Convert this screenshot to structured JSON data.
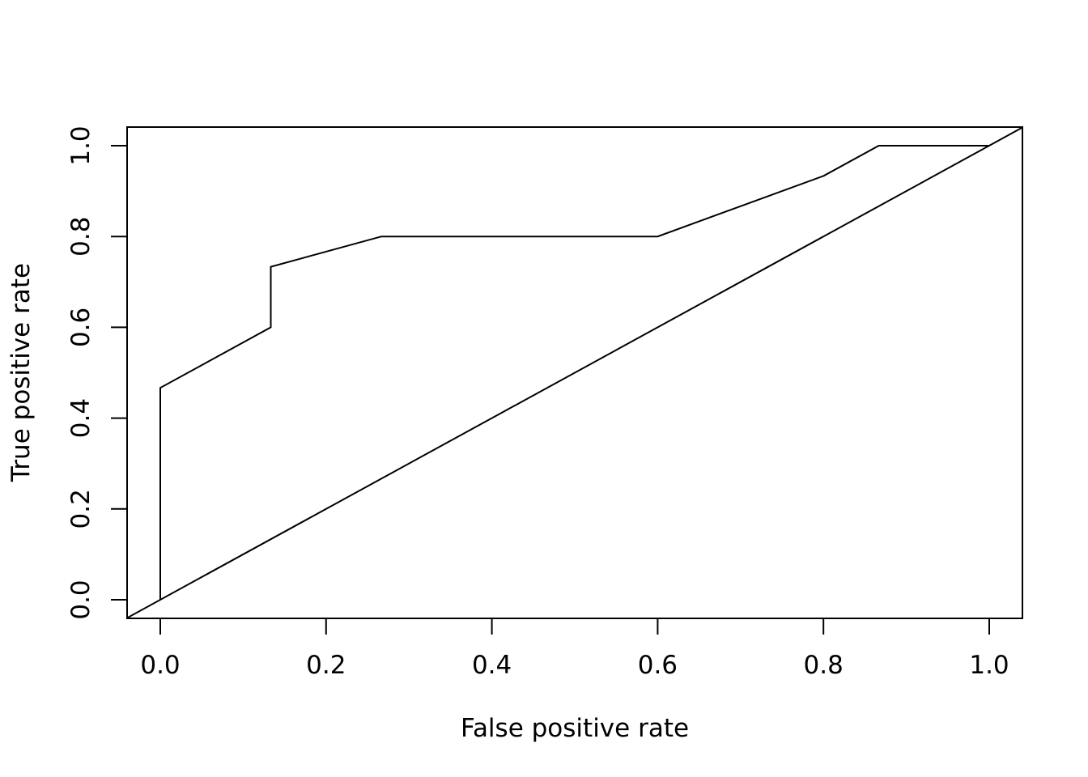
{
  "chart_data": {
    "type": "line",
    "title": "",
    "xlabel": "False positive rate",
    "ylabel": "True positive rate",
    "xlim": [
      0,
      1
    ],
    "ylim": [
      0,
      1
    ],
    "x_ticks": [
      "0.0",
      "0.2",
      "0.4",
      "0.6",
      "0.8",
      "1.0"
    ],
    "y_ticks": [
      "0.0",
      "0.2",
      "0.4",
      "0.6",
      "0.8",
      "1.0"
    ],
    "grid": false,
    "legend": "none",
    "series": [
      {
        "x": [
          0,
          0,
          0.1333,
          0.1333,
          0.2667,
          0.6,
          0.8,
          0.8667,
          1.0
        ],
        "y": [
          0,
          0.4667,
          0.6,
          0.7333,
          0.8,
          0.8,
          0.9333,
          1.0,
          1.0
        ]
      }
    ],
    "reference_line": {
      "x": [
        -0.04,
        1.04
      ],
      "y": [
        -0.04,
        1.04
      ]
    },
    "line_color": "#000000"
  }
}
